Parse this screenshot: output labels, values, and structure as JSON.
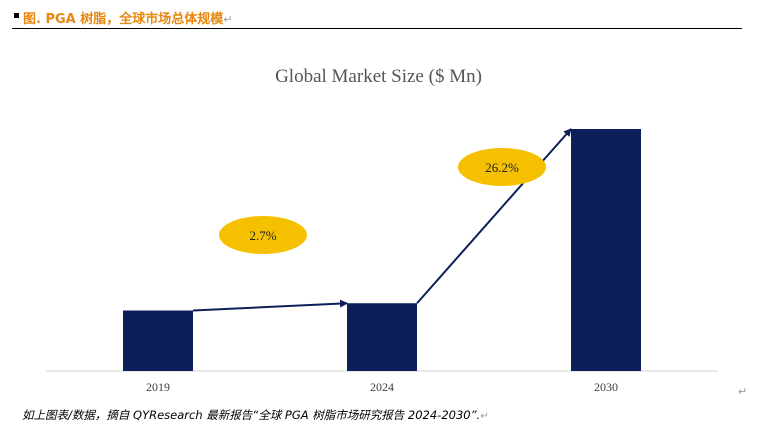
{
  "header": {
    "title": "图. PGA 树脂，全球市场总体规模",
    "return_mark": "↵"
  },
  "chart_data": {
    "type": "bar",
    "title": "Global Market Size ($ Mn)",
    "categories": [
      "2019",
      "2024",
      "2030"
    ],
    "values": [
      25,
      28,
      100
    ],
    "ylim": [
      0,
      100
    ],
    "xlabel": "",
    "ylabel": "",
    "grid": false,
    "bar_color": "#0c1f5a",
    "annotations": [
      {
        "label": "2.7%",
        "from": "2019",
        "to": "2024"
      },
      {
        "label": "26.2%",
        "from": "2024",
        "to": "2030"
      }
    ],
    "annotation_color": "#f5c000",
    "arrow_color": "#0c1f5a"
  },
  "side_mark": "↵",
  "footer": {
    "text": "如上图表/数据，摘自 QYResearch 最新报告“全球 PGA 树脂市场研究报告 2024-2030”.",
    "return_mark": "↵"
  }
}
